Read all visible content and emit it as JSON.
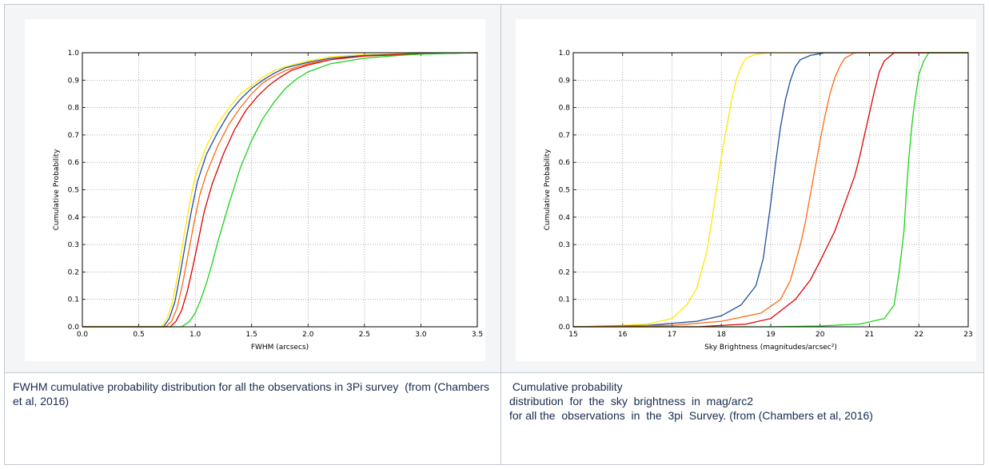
{
  "captions": {
    "left": "FWHM cumulative probability distribution for all the observations in 3Pi survey  (from (Chambers et al, 2016)",
    "right": " Cumulative probability\ndistribution  for  the  sky  brightness  in  mag/arc2\nfor all the  observations  in  the  3pi  Survey. (from (Chambers et al, 2016)"
  },
  "chart_data": [
    {
      "type": "line",
      "xlabel": "FWHM (arcsecs)",
      "ylabel": "Cumulative Probability",
      "xlim": [
        0.0,
        3.5
      ],
      "ylim": [
        0.0,
        1.0
      ],
      "xticks": [
        "0.0",
        "0.5",
        "1.0",
        "1.5",
        "2.0",
        "2.5",
        "3.0",
        "3.5"
      ],
      "yticks": [
        "0.0",
        "0.1",
        "0.2",
        "0.3",
        "0.4",
        "0.5",
        "0.6",
        "0.7",
        "0.8",
        "0.9",
        "1.0"
      ],
      "grid": true,
      "series": [
        {
          "color": "#ffe800",
          "x": [
            0.0,
            0.7,
            0.75,
            0.8,
            0.85,
            0.9,
            0.95,
            1.0,
            1.1,
            1.2,
            1.3,
            1.4,
            1.5,
            1.6,
            1.7,
            1.8,
            2.0,
            2.2,
            2.5,
            3.0,
            3.5
          ],
          "y": [
            0.0,
            0.0,
            0.03,
            0.09,
            0.2,
            0.33,
            0.45,
            0.55,
            0.66,
            0.74,
            0.8,
            0.85,
            0.88,
            0.91,
            0.935,
            0.95,
            0.97,
            0.985,
            0.993,
            0.998,
            1.0
          ]
        },
        {
          "color": "#1f4fa0",
          "x": [
            0.0,
            0.72,
            0.77,
            0.82,
            0.87,
            0.92,
            0.97,
            1.02,
            1.1,
            1.2,
            1.3,
            1.4,
            1.5,
            1.6,
            1.7,
            1.8,
            2.0,
            2.2,
            2.5,
            3.0,
            3.5
          ],
          "y": [
            0.0,
            0.0,
            0.03,
            0.09,
            0.2,
            0.32,
            0.43,
            0.53,
            0.63,
            0.71,
            0.78,
            0.83,
            0.87,
            0.9,
            0.925,
            0.945,
            0.965,
            0.98,
            0.99,
            0.997,
            1.0
          ]
        },
        {
          "color": "#ff6a13",
          "x": [
            0.0,
            0.74,
            0.79,
            0.84,
            0.89,
            0.94,
            0.99,
            1.04,
            1.1,
            1.2,
            1.3,
            1.4,
            1.5,
            1.6,
            1.7,
            1.8,
            2.0,
            2.2,
            2.5,
            3.0,
            3.5
          ],
          "y": [
            0.0,
            0.0,
            0.02,
            0.07,
            0.16,
            0.27,
            0.38,
            0.48,
            0.56,
            0.66,
            0.74,
            0.8,
            0.85,
            0.89,
            0.915,
            0.935,
            0.96,
            0.975,
            0.988,
            0.996,
            1.0
          ]
        },
        {
          "color": "#e00000",
          "x": [
            0.0,
            0.78,
            0.83,
            0.88,
            0.93,
            0.98,
            1.03,
            1.08,
            1.15,
            1.25,
            1.35,
            1.45,
            1.55,
            1.65,
            1.75,
            1.85,
            2.0,
            2.2,
            2.5,
            3.0,
            3.5
          ],
          "y": [
            0.0,
            0.0,
            0.02,
            0.06,
            0.13,
            0.22,
            0.32,
            0.42,
            0.52,
            0.63,
            0.72,
            0.79,
            0.84,
            0.88,
            0.91,
            0.935,
            0.955,
            0.975,
            0.988,
            0.996,
            1.0
          ]
        },
        {
          "color": "#19d419",
          "x": [
            0.0,
            0.88,
            0.95,
            1.0,
            1.05,
            1.1,
            1.15,
            1.2,
            1.3,
            1.4,
            1.5,
            1.6,
            1.7,
            1.8,
            1.9,
            2.0,
            2.2,
            2.5,
            2.8,
            3.0,
            3.5
          ],
          "y": [
            0.0,
            0.0,
            0.02,
            0.05,
            0.1,
            0.16,
            0.23,
            0.31,
            0.45,
            0.58,
            0.68,
            0.76,
            0.82,
            0.87,
            0.905,
            0.93,
            0.96,
            0.98,
            0.99,
            0.995,
            1.0
          ]
        }
      ]
    },
    {
      "type": "line",
      "xlabel": "Sky Brightness (magnitudes/arcsec²)",
      "ylabel": "Cumulative Probability",
      "xlim": [
        15,
        23
      ],
      "ylim": [
        0.0,
        1.0
      ],
      "xticks": [
        "15",
        "16",
        "17",
        "18",
        "19",
        "20",
        "21",
        "22",
        "23"
      ],
      "yticks": [
        "0.0",
        "0.1",
        "0.2",
        "0.3",
        "0.4",
        "0.5",
        "0.6",
        "0.7",
        "0.8",
        "0.9",
        "1.0"
      ],
      "grid": true,
      "series": [
        {
          "color": "#ffe800",
          "x": [
            15,
            16,
            16.5,
            17,
            17.3,
            17.5,
            17.7,
            17.8,
            17.9,
            18.0,
            18.1,
            18.2,
            18.3,
            18.4,
            18.5,
            18.7,
            19,
            23
          ],
          "y": [
            0.0,
            0.005,
            0.01,
            0.03,
            0.08,
            0.14,
            0.27,
            0.38,
            0.5,
            0.62,
            0.72,
            0.82,
            0.9,
            0.95,
            0.98,
            0.995,
            1.0,
            1.0
          ]
        },
        {
          "color": "#1f4fa0",
          "x": [
            15,
            16.5,
            17.5,
            18.0,
            18.4,
            18.7,
            18.85,
            19.0,
            19.1,
            19.2,
            19.3,
            19.4,
            19.5,
            19.6,
            19.8,
            20.1,
            23
          ],
          "y": [
            0.0,
            0.005,
            0.02,
            0.04,
            0.08,
            0.15,
            0.25,
            0.45,
            0.6,
            0.73,
            0.83,
            0.9,
            0.95,
            0.975,
            0.99,
            1.0,
            1.0
          ]
        },
        {
          "color": "#ff6a13",
          "x": [
            15,
            17,
            18,
            18.8,
            19.2,
            19.4,
            19.6,
            19.7,
            19.8,
            19.9,
            20.0,
            20.1,
            20.2,
            20.3,
            20.4,
            20.5,
            20.7,
            23
          ],
          "y": [
            0.0,
            0.005,
            0.02,
            0.05,
            0.1,
            0.17,
            0.3,
            0.38,
            0.48,
            0.58,
            0.68,
            0.77,
            0.85,
            0.91,
            0.95,
            0.98,
            1.0,
            1.0
          ]
        },
        {
          "color": "#e00000",
          "x": [
            15,
            17.5,
            18.5,
            19.0,
            19.5,
            19.8,
            20.0,
            20.3,
            20.5,
            20.7,
            20.8,
            20.9,
            21.0,
            21.1,
            21.2,
            21.3,
            21.5,
            23
          ],
          "y": [
            0.0,
            0.0,
            0.01,
            0.03,
            0.1,
            0.17,
            0.24,
            0.35,
            0.45,
            0.55,
            0.62,
            0.7,
            0.78,
            0.86,
            0.93,
            0.97,
            1.0,
            1.0
          ]
        },
        {
          "color": "#19d419",
          "x": [
            15,
            19,
            20,
            20.8,
            21.3,
            21.5,
            21.6,
            21.7,
            21.75,
            21.8,
            21.85,
            21.9,
            21.95,
            22.0,
            22.1,
            22.2,
            23
          ],
          "y": [
            0.0,
            0.0,
            0.003,
            0.01,
            0.03,
            0.08,
            0.2,
            0.35,
            0.5,
            0.62,
            0.72,
            0.8,
            0.86,
            0.92,
            0.97,
            1.0,
            1.0
          ]
        }
      ]
    }
  ]
}
